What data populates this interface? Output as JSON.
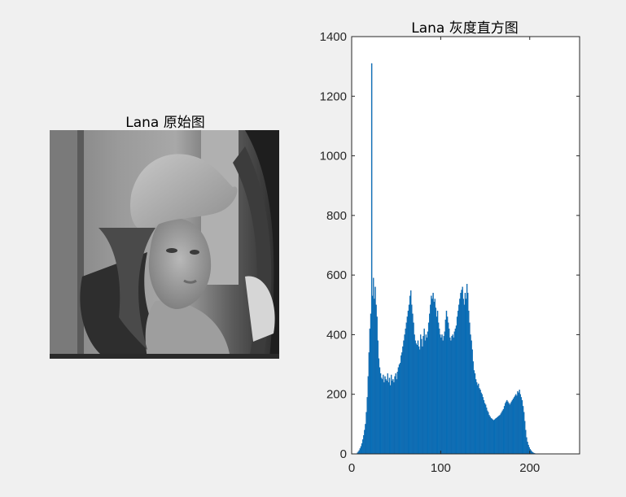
{
  "figure": {
    "left_title": "Lana 原始图",
    "right_title": "Lana 灰度直方图"
  },
  "chart_data": {
    "type": "bar",
    "title": "Lana 灰度直方图",
    "xlabel": "",
    "ylabel": "",
    "xlim": [
      0,
      256
    ],
    "ylim": [
      0,
      1400
    ],
    "xticks": [
      0,
      100,
      200
    ],
    "yticks": [
      0,
      200,
      400,
      600,
      800,
      1000,
      1200,
      1400
    ],
    "bar_color": "#0072BD",
    "bins": {
      "start": 0,
      "step": 1
    },
    "values": [
      0,
      0,
      0,
      0,
      0,
      0,
      4,
      8,
      12,
      18,
      25,
      35,
      48,
      62,
      80,
      100,
      140,
      190,
      260,
      340,
      420,
      470,
      1310,
      530,
      590,
      520,
      560,
      500,
      460,
      380,
      320,
      290,
      270,
      255,
      250,
      265,
      240,
      260,
      250,
      245,
      270,
      240,
      255,
      230,
      265,
      245,
      250,
      240,
      260,
      270,
      250,
      275,
      290,
      300,
      305,
      330,
      340,
      360,
      380,
      400,
      420,
      440,
      460,
      480,
      500,
      530,
      548,
      500,
      470,
      440,
      400,
      380,
      370,
      365,
      380,
      360,
      350,
      400,
      385,
      360,
      395,
      420,
      380,
      400,
      390,
      410,
      440,
      470,
      500,
      530,
      520,
      540,
      510,
      520,
      490,
      460,
      480,
      440,
      420,
      400,
      390,
      400,
      380,
      395,
      410,
      450,
      480,
      460,
      440,
      420,
      390,
      380,
      395,
      400,
      390,
      410,
      420,
      430,
      460,
      480,
      500,
      520,
      540,
      550,
      560,
      520,
      500,
      540,
      520,
      570,
      540,
      480,
      440,
      400,
      380,
      350,
      310,
      280,
      270,
      250,
      240,
      230,
      235,
      220,
      215,
      205,
      200,
      190,
      180,
      170,
      165,
      155,
      145,
      140,
      130,
      125,
      120,
      118,
      115,
      113,
      115,
      118,
      120,
      122,
      125,
      128,
      130,
      135,
      140,
      145,
      150,
      160,
      170,
      175,
      180,
      175,
      170,
      165,
      170,
      175,
      180,
      185,
      190,
      195,
      200,
      195,
      210,
      205,
      215,
      200,
      190,
      180,
      160,
      140,
      110,
      80,
      55,
      40,
      30,
      22,
      16,
      12,
      8,
      5,
      3,
      2,
      1,
      0,
      0,
      0,
      0,
      0,
      0,
      0,
      0,
      0,
      0,
      0,
      0,
      0,
      0,
      0,
      0,
      0,
      0,
      0,
      0,
      0,
      0,
      0,
      0,
      0,
      0,
      0,
      0,
      0,
      0,
      0,
      0,
      0,
      0,
      0,
      0,
      0,
      0,
      0,
      0,
      0,
      0,
      0,
      0,
      0,
      0,
      0,
      0,
      0,
      0
    ]
  }
}
